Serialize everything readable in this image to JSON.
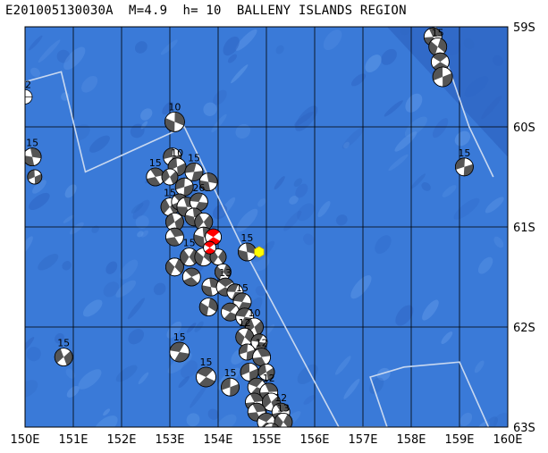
{
  "title": "E201005130030A  M=4.9  h= 10  BALLENY ISLANDS REGION",
  "map": {
    "lon_range": [
      150,
      160
    ],
    "lat_range": [
      -63,
      -59
    ],
    "x_tick_labels": [
      "150E",
      "151E",
      "152E",
      "153E",
      "154E",
      "155E",
      "156E",
      "157E",
      "158E",
      "159E",
      "160E"
    ],
    "y_tick_labels": [
      "59S",
      "60S",
      "61S",
      "62S",
      "63S"
    ],
    "colors": {
      "ocean": "#3a7ad8",
      "ocean_deep": "#2f66c4",
      "ocean_light": "#5c96e6",
      "grid": "#000000",
      "plate_boundary": "#c8d8f0",
      "mechanism_dark": "#555555",
      "mechanism_light": "#ffffff",
      "event_highlight": "#ff0000",
      "epicenter": "#ffff00"
    },
    "plate_boundary": [
      [
        150.0,
        -59.55
      ],
      [
        150.75,
        -59.45
      ],
      [
        151.25,
        -60.45
      ],
      [
        153.3,
        -60.0
      ],
      [
        154.45,
        -61.15
      ],
      [
        156.5,
        -63.0
      ],
      [
        157.5,
        -63.0
      ],
      [
        157.15,
        -62.5
      ],
      [
        157.85,
        -62.4
      ],
      [
        159.0,
        -62.35
      ],
      [
        159.6,
        -63.0
      ]
    ],
    "plate_boundary_ne": [
      [
        158.5,
        -59.0
      ],
      [
        158.7,
        -59.3
      ],
      [
        159.2,
        -60.0
      ],
      [
        159.7,
        -60.5
      ]
    ],
    "epicenter": {
      "lon": 154.85,
      "lat": -61.25
    },
    "highlight_event": {
      "lon": 153.9,
      "lat": -61.1
    },
    "mechanisms": [
      {
        "lon": 150.0,
        "lat": -59.7,
        "label": "12",
        "r": 8,
        "style": "ring"
      },
      {
        "lon": 150.15,
        "lat": -60.3,
        "label": "15",
        "r": 10
      },
      {
        "lon": 150.2,
        "lat": -60.5,
        "label": "",
        "r": 8
      },
      {
        "lon": 150.8,
        "lat": -62.3,
        "label": "15",
        "r": 10
      },
      {
        "lon": 152.7,
        "lat": -60.5,
        "label": "15",
        "r": 10
      },
      {
        "lon": 153.1,
        "lat": -59.95,
        "label": "10",
        "r": 11
      },
      {
        "lon": 153.05,
        "lat": -60.3,
        "label": "",
        "r": 10
      },
      {
        "lon": 153.15,
        "lat": -60.4,
        "label": "10",
        "r": 10
      },
      {
        "lon": 153.0,
        "lat": -60.5,
        "label": "",
        "r": 9
      },
      {
        "lon": 153.5,
        "lat": -60.45,
        "label": "15",
        "r": 10
      },
      {
        "lon": 153.3,
        "lat": -60.6,
        "label": "",
        "r": 10
      },
      {
        "lon": 153.8,
        "lat": -60.55,
        "label": "",
        "r": 10
      },
      {
        "lon": 153.0,
        "lat": -60.8,
        "label": "15",
        "r": 10
      },
      {
        "lon": 153.2,
        "lat": -60.75,
        "label": "",
        "r": 9
      },
      {
        "lon": 153.35,
        "lat": -60.8,
        "label": "",
        "r": 11
      },
      {
        "lon": 153.6,
        "lat": -60.75,
        "label": "26",
        "r": 10
      },
      {
        "lon": 153.1,
        "lat": -60.95,
        "label": "",
        "r": 10
      },
      {
        "lon": 153.5,
        "lat": -60.9,
        "label": "",
        "r": 10
      },
      {
        "lon": 153.7,
        "lat": -60.95,
        "label": "",
        "r": 10
      },
      {
        "lon": 153.1,
        "lat": -61.1,
        "label": "",
        "r": 10
      },
      {
        "lon": 153.7,
        "lat": -61.1,
        "label": "",
        "r": 11
      },
      {
        "lon": 153.1,
        "lat": -61.4,
        "label": "",
        "r": 10
      },
      {
        "lon": 153.4,
        "lat": -61.3,
        "label": "15",
        "r": 10
      },
      {
        "lon": 153.45,
        "lat": -61.5,
        "label": "",
        "r": 10
      },
      {
        "lon": 153.7,
        "lat": -61.3,
        "label": "",
        "r": 10
      },
      {
        "lon": 154.0,
        "lat": -61.3,
        "label": "",
        "r": 9
      },
      {
        "lon": 154.1,
        "lat": -61.45,
        "label": "",
        "r": 9
      },
      {
        "lon": 153.85,
        "lat": -61.6,
        "label": "",
        "r": 10
      },
      {
        "lon": 154.15,
        "lat": -61.6,
        "label": "13",
        "r": 10
      },
      {
        "lon": 154.6,
        "lat": -61.25,
        "label": "15",
        "r": 10
      },
      {
        "lon": 154.35,
        "lat": -61.65,
        "label": "",
        "r": 9
      },
      {
        "lon": 154.5,
        "lat": -61.75,
        "label": "15",
        "r": 10
      },
      {
        "lon": 153.8,
        "lat": -61.8,
        "label": "",
        "r": 10
      },
      {
        "lon": 154.25,
        "lat": -61.85,
        "label": "",
        "r": 10
      },
      {
        "lon": 154.55,
        "lat": -61.9,
        "label": "",
        "r": 10
      },
      {
        "lon": 154.75,
        "lat": -62.0,
        "label": "10",
        "r": 10
      },
      {
        "lon": 154.55,
        "lat": -62.1,
        "label": "12",
        "r": 10
      },
      {
        "lon": 154.85,
        "lat": -62.15,
        "label": "",
        "r": 9
      },
      {
        "lon": 154.6,
        "lat": -62.25,
        "label": "",
        "r": 9
      },
      {
        "lon": 154.9,
        "lat": -62.3,
        "label": "12",
        "r": 10
      },
      {
        "lon": 154.65,
        "lat": -62.45,
        "label": "",
        "r": 10
      },
      {
        "lon": 155.0,
        "lat": -62.45,
        "label": "",
        "r": 9
      },
      {
        "lon": 154.8,
        "lat": -62.6,
        "label": "",
        "r": 10
      },
      {
        "lon": 155.05,
        "lat": -62.65,
        "label": "12",
        "r": 10
      },
      {
        "lon": 154.75,
        "lat": -62.75,
        "label": "",
        "r": 10
      },
      {
        "lon": 155.1,
        "lat": -62.75,
        "label": "",
        "r": 10
      },
      {
        "lon": 154.8,
        "lat": -62.85,
        "label": "",
        "r": 10
      },
      {
        "lon": 155.3,
        "lat": -62.85,
        "label": "12",
        "r": 10
      },
      {
        "lon": 155.0,
        "lat": -62.95,
        "label": "",
        "r": 10
      },
      {
        "lon": 155.35,
        "lat": -62.95,
        "label": "13",
        "r": 10
      },
      {
        "lon": 155.1,
        "lat": -63.05,
        "label": "",
        "r": 10
      },
      {
        "lon": 153.2,
        "lat": -62.25,
        "label": "15",
        "r": 11
      },
      {
        "lon": 153.75,
        "lat": -62.5,
        "label": "15",
        "r": 11
      },
      {
        "lon": 154.25,
        "lat": -62.6,
        "label": "15",
        "r": 10
      },
      {
        "lon": 158.45,
        "lat": -59.1,
        "label": "15",
        "r": 10
      },
      {
        "lon": 158.55,
        "lat": -59.2,
        "label": "15",
        "r": 10
      },
      {
        "lon": 158.6,
        "lat": -59.35,
        "label": "",
        "r": 10
      },
      {
        "lon": 158.65,
        "lat": -59.5,
        "label": "",
        "r": 11
      },
      {
        "lon": 159.1,
        "lat": -60.4,
        "label": "15",
        "r": 10
      }
    ]
  }
}
